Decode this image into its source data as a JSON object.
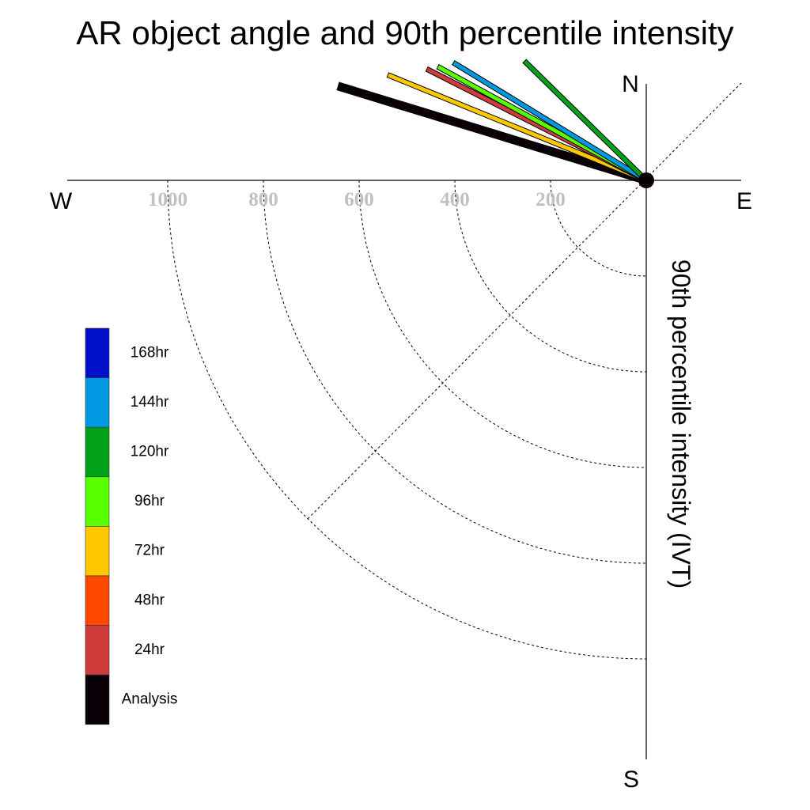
{
  "chart_data": {
    "type": "polar-vector",
    "title": "AR object angle and 90th percentile intensity",
    "ylabel": "90th percentile intensity (IVT)",
    "compass": {
      "north": "N",
      "south": "S",
      "east": "E",
      "west": "W"
    },
    "radial_ticks": [
      200,
      400,
      600,
      800,
      1000
    ],
    "radial_max": 1200,
    "grid": true,
    "legend_position": "left",
    "legend": [
      {
        "label": "168hr",
        "color": "#0010c8"
      },
      {
        "label": "144hr",
        "color": "#0098e0"
      },
      {
        "label": "120hr",
        "color": "#00a018"
      },
      {
        "label": "96hr",
        "color": "#58ff00"
      },
      {
        "label": "72hr",
        "color": "#ffc800"
      },
      {
        "label": "48hr",
        "color": "#ff4800"
      },
      {
        "label": "24hr",
        "color": "#d03c3c"
      },
      {
        "label": "Analysis",
        "color": "#0a0008"
      }
    ],
    "series": [
      {
        "name": "Analysis",
        "color": "#0a0008",
        "edge": "#000000",
        "angle_deg": 163.0,
        "intensity": 665,
        "width": 9
      },
      {
        "name": "72hr",
        "color": "#ffc800",
        "edge": "#000000",
        "angle_deg": 157.8,
        "intensity": 578,
        "width": 5
      },
      {
        "name": "24hr",
        "color": "#d03c3c",
        "edge": "#000000",
        "angle_deg": 153.1,
        "intensity": 509,
        "width": 5
      },
      {
        "name": "96hr",
        "color": "#58ff00",
        "edge": "#000000",
        "angle_deg": 151.4,
        "intensity": 491,
        "width": 5
      },
      {
        "name": "144hr",
        "color": "#0098e0",
        "edge": "#000000",
        "angle_deg": 148.6,
        "intensity": 467,
        "width": 5
      },
      {
        "name": "120hr",
        "color": "#00a018",
        "edge": "#000000",
        "angle_deg": 135.6,
        "intensity": 351,
        "width": 5
      }
    ]
  }
}
